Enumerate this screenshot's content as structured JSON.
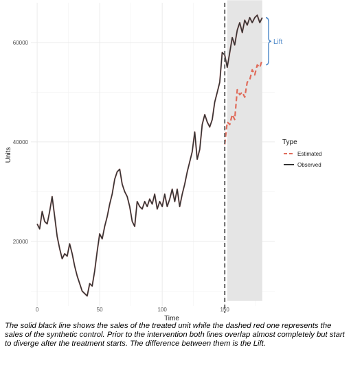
{
  "chart_data": {
    "type": "line",
    "xlabel": "Time",
    "ylabel": "Units",
    "xlim": [
      -5,
      190
    ],
    "ylim": [
      7000,
      68000
    ],
    "x_ticks": [
      0,
      50,
      100,
      150
    ],
    "y_ticks": [
      20000,
      40000,
      60000
    ],
    "y_tick_labels": [
      "20000",
      "40000",
      "60000"
    ],
    "grid": true,
    "treatment_time": 150,
    "shaded_region": {
      "x": [
        152,
        180
      ],
      "y": [
        8000,
        68500
      ]
    },
    "legend": {
      "title": "Type",
      "placement": "right",
      "entries": [
        "Estimated",
        "Observed"
      ]
    },
    "annotation": {
      "text": "Lift",
      "y_range": [
        55500,
        65000
      ]
    },
    "series": [
      {
        "name": "Observed",
        "style": "solid",
        "color": "#333333",
        "x": [
          0,
          2,
          4,
          6,
          8,
          10,
          12,
          14,
          16,
          18,
          20,
          22,
          24,
          26,
          28,
          30,
          32,
          34,
          36,
          38,
          40,
          42,
          44,
          46,
          48,
          50,
          52,
          54,
          56,
          58,
          60,
          62,
          64,
          66,
          68,
          70,
          72,
          74,
          76,
          78,
          80,
          82,
          84,
          86,
          88,
          90,
          92,
          94,
          96,
          98,
          100,
          102,
          104,
          106,
          108,
          110,
          112,
          114,
          116,
          118,
          120,
          122,
          124,
          126,
          128,
          130,
          132,
          134,
          136,
          138,
          140,
          142,
          144,
          146,
          148,
          150,
          152,
          154,
          156,
          158,
          160,
          162,
          164,
          166,
          168,
          170,
          172,
          174,
          176,
          178,
          180
        ],
        "y": [
          23500,
          22500,
          26000,
          24000,
          23500,
          26000,
          29000,
          25000,
          21000,
          18500,
          16500,
          17500,
          17000,
          19500,
          17500,
          15000,
          13000,
          11500,
          10000,
          9500,
          9000,
          11500,
          11000,
          14000,
          18000,
          21500,
          20500,
          23000,
          25000,
          27500,
          29500,
          32500,
          34000,
          34500,
          31500,
          30000,
          29000,
          27000,
          24000,
          23000,
          28000,
          27000,
          26500,
          28000,
          27000,
          28500,
          27500,
          29500,
          26500,
          28000,
          27000,
          29500,
          27000,
          28500,
          30500,
          28000,
          30500,
          27000,
          29500,
          31500,
          34000,
          36000,
          38000,
          42000,
          36500,
          38500,
          43500,
          45500,
          44000,
          43000,
          44500,
          48000,
          50000,
          52000,
          58000,
          57500,
          55000,
          58000,
          61000,
          59500,
          62500,
          64000,
          62000,
          64500,
          63500,
          65000,
          64000,
          65000,
          65500,
          64000,
          65000
        ],
        "x_shift": 0
      },
      {
        "name": "Estimated",
        "style": "dashed",
        "color": "#e06c5b",
        "x": [
          150,
          152,
          154,
          156,
          158,
          160,
          162,
          164,
          166,
          168,
          170,
          172,
          174,
          176,
          178,
          180
        ],
        "y": [
          39500,
          44000,
          43500,
          45500,
          44500,
          50500,
          49500,
          50000,
          49000,
          52000,
          52500,
          54500,
          53500,
          55500,
          55000,
          56500
        ]
      }
    ]
  },
  "caption": "The solid black line shows the sales of the treated unit while the dashed red one represents the sales of the synthetic control. Prior to the intervention both lines overlap almost completely but start to diverge after the treatment starts. The difference between them is the Lift."
}
